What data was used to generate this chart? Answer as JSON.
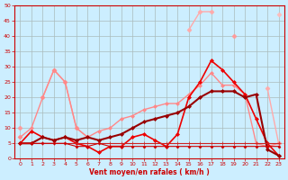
{
  "x": [
    0,
    1,
    2,
    3,
    4,
    5,
    6,
    7,
    8,
    9,
    10,
    11,
    12,
    13,
    14,
    15,
    16,
    17,
    18,
    19,
    20,
    21,
    22,
    23
  ],
  "series": [
    {
      "y": [
        7,
        null,
        null,
        null,
        null,
        null,
        null,
        null,
        null,
        null,
        null,
        null,
        null,
        null,
        null,
        null,
        null,
        null,
        null,
        null,
        null,
        null,
        null,
        47
      ],
      "color": "#ffbbbb",
      "lw": 1.0,
      "marker": "D",
      "ms": 2.5
    },
    {
      "y": [
        7,
        null,
        null,
        29,
        null,
        null,
        null,
        null,
        null,
        null,
        null,
        null,
        null,
        null,
        null,
        42,
        48,
        48,
        null,
        null,
        null,
        null,
        23,
        5
      ],
      "color": "#ffaaaa",
      "lw": 1.0,
      "marker": "D",
      "ms": 2.5
    },
    {
      "y": [
        10,
        null,
        20,
        29,
        25,
        10,
        7,
        null,
        null,
        null,
        null,
        null,
        null,
        null,
        null,
        null,
        null,
        null,
        null,
        40,
        null,
        null,
        null,
        null
      ],
      "color": "#ff9999",
      "lw": 1.0,
      "marker": "D",
      "ms": 2.5
    },
    {
      "y": [
        7,
        10,
        20,
        29,
        25,
        10,
        7,
        9,
        10,
        13,
        14,
        16,
        17,
        18,
        18,
        21,
        24,
        28,
        24,
        24,
        21,
        5,
        4,
        5
      ],
      "color": "#ff8888",
      "lw": 1.0,
      "marker": "D",
      "ms": 2.0
    },
    {
      "y": [
        5,
        9,
        7,
        6,
        7,
        5,
        4,
        2,
        4,
        4,
        7,
        8,
        6,
        4,
        8,
        20,
        25,
        32,
        29,
        25,
        21,
        13,
        5,
        1
      ],
      "color": "#ee0000",
      "lw": 1.2,
      "marker": "D",
      "ms": 2.0
    },
    {
      "y": [
        5,
        5,
        7,
        6,
        7,
        6,
        7,
        6,
        7,
        8,
        10,
        12,
        13,
        14,
        15,
        17,
        20,
        22,
        22,
        22,
        20,
        21,
        3,
        1
      ],
      "color": "#990000",
      "lw": 1.5,
      "marker": "D",
      "ms": 2.0
    },
    {
      "y": [
        5,
        5,
        5,
        5,
        5,
        5,
        5,
        5,
        5,
        5,
        5,
        5,
        5,
        5,
        5,
        5,
        5,
        5,
        5,
        5,
        5,
        5,
        5,
        5
      ],
      "color": "#cc2222",
      "lw": 0.8,
      "marker": "+",
      "ms": 3.0
    },
    {
      "y": [
        5,
        5,
        5,
        5,
        5,
        4,
        4,
        5,
        4,
        4,
        4,
        4,
        4,
        4,
        4,
        4,
        4,
        4,
        4,
        4,
        4,
        4,
        4,
        4
      ],
      "color": "#cc0000",
      "lw": 0.8,
      "marker": "D",
      "ms": 1.5
    }
  ],
  "xlabel": "Vent moyen/en rafales ( km/h )",
  "xlim_min": -0.5,
  "xlim_max": 23.5,
  "ylim_min": 0,
  "ylim_max": 50,
  "yticks": [
    0,
    5,
    10,
    15,
    20,
    25,
    30,
    35,
    40,
    45,
    50
  ],
  "xticks": [
    0,
    1,
    2,
    3,
    4,
    5,
    6,
    7,
    8,
    9,
    10,
    11,
    12,
    13,
    14,
    15,
    16,
    17,
    18,
    19,
    20,
    21,
    22,
    23
  ],
  "bg_color": "#cceeff",
  "grid_color": "#aabbbb",
  "tick_color": "#cc0000",
  "label_color": "#cc0000"
}
